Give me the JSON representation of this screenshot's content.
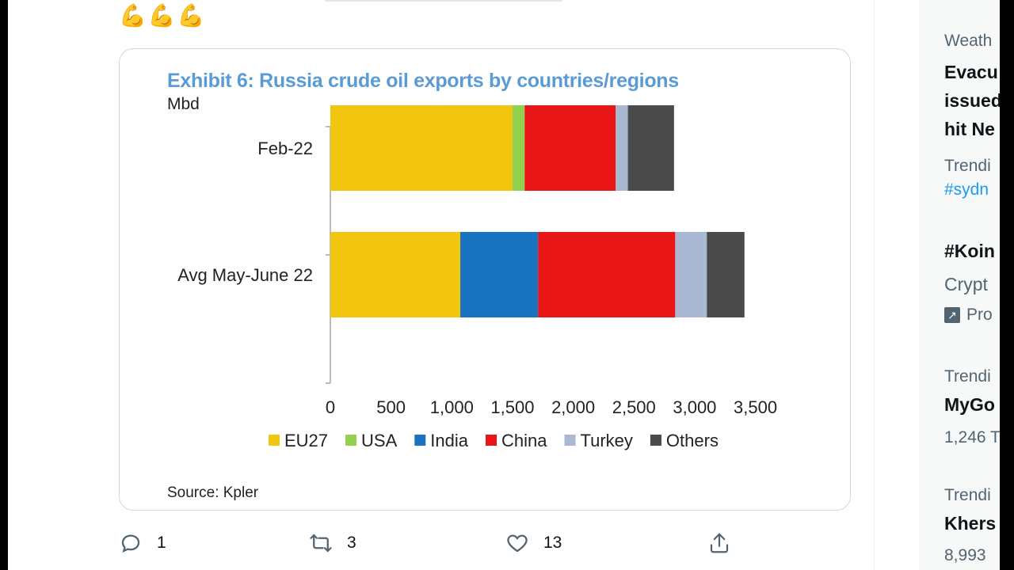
{
  "tweet": {
    "emojis": "💪💪💪",
    "actions": {
      "reply_count": "1",
      "retweet_count": "3",
      "like_count": "13"
    }
  },
  "chart_data": {
    "type": "bar",
    "orientation": "horizontal",
    "stacked": true,
    "title": "Exhibit 6: Russia crude oil exports by countries/regions",
    "unit": "Mbd",
    "source": "Source: Kpler",
    "categories": [
      "Feb-22",
      "Avg May-June 22"
    ],
    "series": [
      {
        "name": "EU27",
        "color": "#f2c50f",
        "values": [
          1500,
          1070
        ]
      },
      {
        "name": "USA",
        "color": "#92d050",
        "values": [
          100,
          0
        ]
      },
      {
        "name": "India",
        "color": "#1a73c0",
        "values": [
          0,
          640
        ]
      },
      {
        "name": "China",
        "color": "#e81416",
        "values": [
          750,
          1130
        ]
      },
      {
        "name": "Turkey",
        "color": "#a9b9d3",
        "values": [
          100,
          260
        ]
      },
      {
        "name": "Others",
        "color": "#4a4a4a",
        "values": [
          380,
          310
        ]
      }
    ],
    "xlim": [
      0,
      3500
    ],
    "xticks": [
      "0",
      "500",
      "1,000",
      "1,500",
      "2,000",
      "2,500",
      "3,000",
      "3,500"
    ],
    "legend_position": "bottom",
    "grid": false
  },
  "sidebar": {
    "item1_meta": "Weath",
    "item1_line1": "Evacu",
    "item1_line2": "issued",
    "item1_line3": "hit Ne",
    "item2_meta": "Trendi",
    "item2_tag": "#sydn",
    "item3_head": "#Koin",
    "item3_body": "Crypt",
    "item3_promo": "Pro",
    "item4_meta": "Trendi",
    "item4_head": "MyGo",
    "item4_count": "1,246 T",
    "item5_meta": "Trendi",
    "item5_head": "Khers",
    "item5_count": "8,993"
  }
}
